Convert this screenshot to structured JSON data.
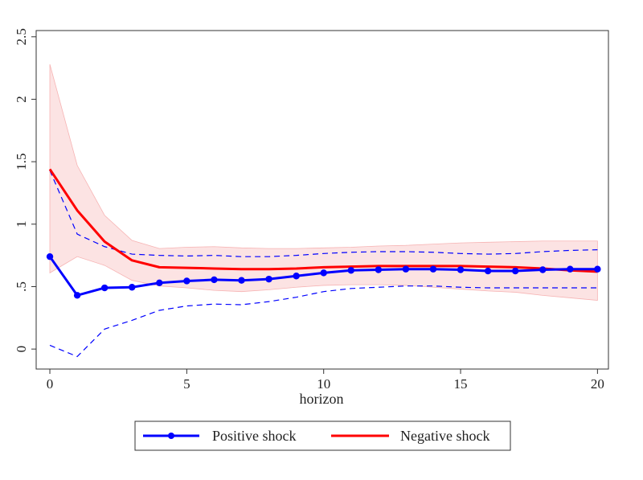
{
  "chart_data": {
    "type": "line",
    "title": "",
    "xlabel": "horizon",
    "ylabel": "",
    "xlim": [
      -0.5,
      20.4
    ],
    "ylim": [
      -0.16,
      2.55
    ],
    "xticks": [
      0,
      5,
      10,
      15,
      20
    ],
    "yticks": [
      0,
      0.5,
      1,
      1.5,
      2,
      2.5
    ],
    "ytick_labels": [
      "0",
      ".5",
      "1",
      "1.5",
      "2",
      "2.5"
    ],
    "x": [
      0,
      1,
      2,
      3,
      4,
      5,
      6,
      7,
      8,
      9,
      10,
      11,
      12,
      13,
      14,
      15,
      16,
      17,
      18,
      19,
      20
    ],
    "grid": false,
    "legend": "bottom",
    "series": [
      {
        "name": "Positive shock",
        "color": "#0000ff",
        "marker": "circle",
        "values": [
          0.74,
          0.43,
          0.49,
          0.495,
          0.53,
          0.545,
          0.555,
          0.55,
          0.56,
          0.585,
          0.61,
          0.63,
          0.635,
          0.64,
          0.64,
          0.635,
          0.625,
          0.625,
          0.635,
          0.64,
          0.64
        ],
        "lower": [
          0.03,
          -0.06,
          0.16,
          0.23,
          0.31,
          0.345,
          0.36,
          0.355,
          0.38,
          0.415,
          0.46,
          0.485,
          0.495,
          0.505,
          0.505,
          0.495,
          0.49,
          0.49,
          0.49,
          0.49,
          0.49
        ],
        "upper": [
          1.43,
          0.92,
          0.82,
          0.76,
          0.75,
          0.745,
          0.75,
          0.74,
          0.74,
          0.75,
          0.765,
          0.775,
          0.78,
          0.78,
          0.775,
          0.765,
          0.76,
          0.765,
          0.78,
          0.79,
          0.795
        ]
      },
      {
        "name": "Negative shock",
        "color": "#ff0000",
        "band_color": "#fcdede",
        "values": [
          1.44,
          1.11,
          0.86,
          0.71,
          0.655,
          0.65,
          0.645,
          0.64,
          0.64,
          0.645,
          0.655,
          0.66,
          0.665,
          0.665,
          0.665,
          0.665,
          0.66,
          0.655,
          0.645,
          0.63,
          0.62
        ],
        "lower": [
          0.61,
          0.74,
          0.67,
          0.55,
          0.505,
          0.49,
          0.47,
          0.46,
          0.475,
          0.495,
          0.51,
          0.515,
          0.515,
          0.51,
          0.495,
          0.48,
          0.465,
          0.455,
          0.43,
          0.41,
          0.39
        ],
        "upper": [
          2.28,
          1.47,
          1.07,
          0.87,
          0.805,
          0.815,
          0.82,
          0.81,
          0.805,
          0.805,
          0.81,
          0.815,
          0.825,
          0.83,
          0.84,
          0.85,
          0.855,
          0.86,
          0.865,
          0.865,
          0.865
        ]
      }
    ]
  }
}
